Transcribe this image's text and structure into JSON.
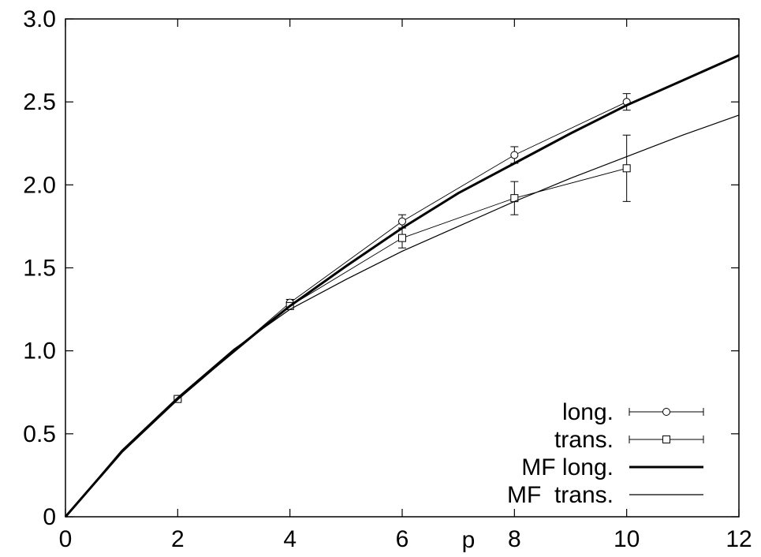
{
  "chart_data": {
    "type": "line",
    "title": "",
    "xlabel": "p",
    "ylabel": "",
    "xlim": [
      0,
      12
    ],
    "ylim": [
      0,
      3.0
    ],
    "xticks": [
      "0",
      "2",
      "4",
      "6",
      "8",
      "10",
      "12"
    ],
    "yticks": [
      "0",
      "0.5",
      "1.0",
      "1.5",
      "2.0",
      "2.5",
      "3.0"
    ],
    "grid": false,
    "legend_position": "bottom-right",
    "series": [
      {
        "name": "long.",
        "style": "points-errorbars-circle",
        "x": [
          2,
          4,
          6,
          8,
          10
        ],
        "y": [
          0.71,
          1.29,
          1.78,
          2.18,
          2.5
        ],
        "yerr": [
          0.01,
          0.02,
          0.04,
          0.05,
          0.05
        ]
      },
      {
        "name": "trans.",
        "style": "points-errorbars-square",
        "x": [
          2,
          4,
          6,
          8,
          10
        ],
        "y": [
          0.71,
          1.27,
          1.68,
          1.92,
          2.1
        ],
        "yerr": [
          0.01,
          0.02,
          0.06,
          0.1,
          0.2
        ]
      },
      {
        "name": "MF long.",
        "style": "thick-line",
        "x": [
          0,
          1,
          2,
          3,
          4,
          5,
          6,
          7,
          8,
          9,
          10,
          11,
          12
        ],
        "y": [
          0,
          0.39,
          0.71,
          1.0,
          1.27,
          1.51,
          1.74,
          1.95,
          2.13,
          2.31,
          2.48,
          2.63,
          2.78
        ]
      },
      {
        "name": "MF  trans.",
        "style": "thin-line",
        "x": [
          0,
          1,
          2,
          3,
          4,
          5,
          6,
          7,
          8,
          9,
          10,
          11,
          12
        ],
        "y": [
          0,
          0.4,
          0.72,
          1.01,
          1.25,
          1.43,
          1.6,
          1.75,
          1.9,
          2.04,
          2.17,
          2.3,
          2.42
        ]
      }
    ]
  }
}
